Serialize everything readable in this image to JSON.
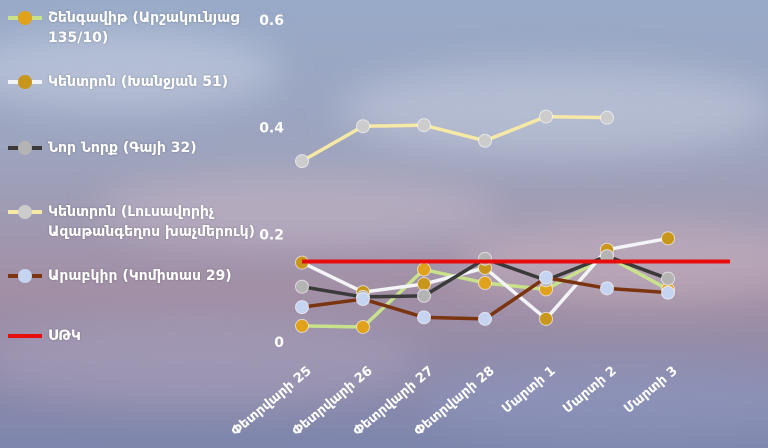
{
  "chart_data": {
    "type": "line",
    "title": "",
    "xlabel": "",
    "ylabel": "",
    "ylim": [
      0,
      0.6
    ],
    "yticks": [
      0,
      0.2,
      0.4,
      0.6
    ],
    "ytick_labels": [
      "0",
      "0.2",
      "0.4",
      "0.6"
    ],
    "grid": false,
    "legend_position": "left",
    "categories": [
      "Փետրվարի 25",
      "Փետրվարի 26",
      "Փետրվարի 27",
      "Փետրվարի 28",
      "Մարտի 1",
      "Մարտի 2",
      "Մարտի 3"
    ],
    "series": [
      {
        "name": "Շենգավիթ (Արշակունյաց 135/10)",
        "line_color": "#c8e28c",
        "marker_color": "#e0a21a",
        "values": [
          0.03,
          0.028,
          0.135,
          0.11,
          0.098,
          0.16,
          0.098
        ]
      },
      {
        "name": "Կենտրոն (Խանջյան 51)",
        "line_color": "#f2f4f8",
        "marker_color": "#c9961c",
        "values": [
          0.148,
          0.093,
          0.108,
          0.138,
          0.043,
          0.172,
          0.193
        ]
      },
      {
        "name": "Նոր Նորք (Գայի 32)",
        "line_color": "#3a3a3a",
        "marker_color": "#b4b4b4",
        "values": [
          0.103,
          0.084,
          0.086,
          0.155,
          0.115,
          0.16,
          0.118
        ]
      },
      {
        "name": "Կենտրոն (Լուսավորիչ Ազաթանգեղոս խաչմերուկ)",
        "line_color": "#f6e9a6",
        "marker_color": "#cccccc",
        "values": [
          0.337,
          0.402,
          0.404,
          0.375,
          0.42,
          0.418,
          null
        ]
      },
      {
        "name": "Արաբկիր (Կոմիտաս 29)",
        "line_color": "#7a3410",
        "marker_color": "#c5d4f0",
        "values": [
          0.065,
          0.08,
          0.046,
          0.043,
          0.12,
          0.1,
          0.092
        ]
      }
    ],
    "reference_line": {
      "name": "ՍԹԿ",
      "value": 0.15,
      "color": "#e80d0d"
    }
  }
}
